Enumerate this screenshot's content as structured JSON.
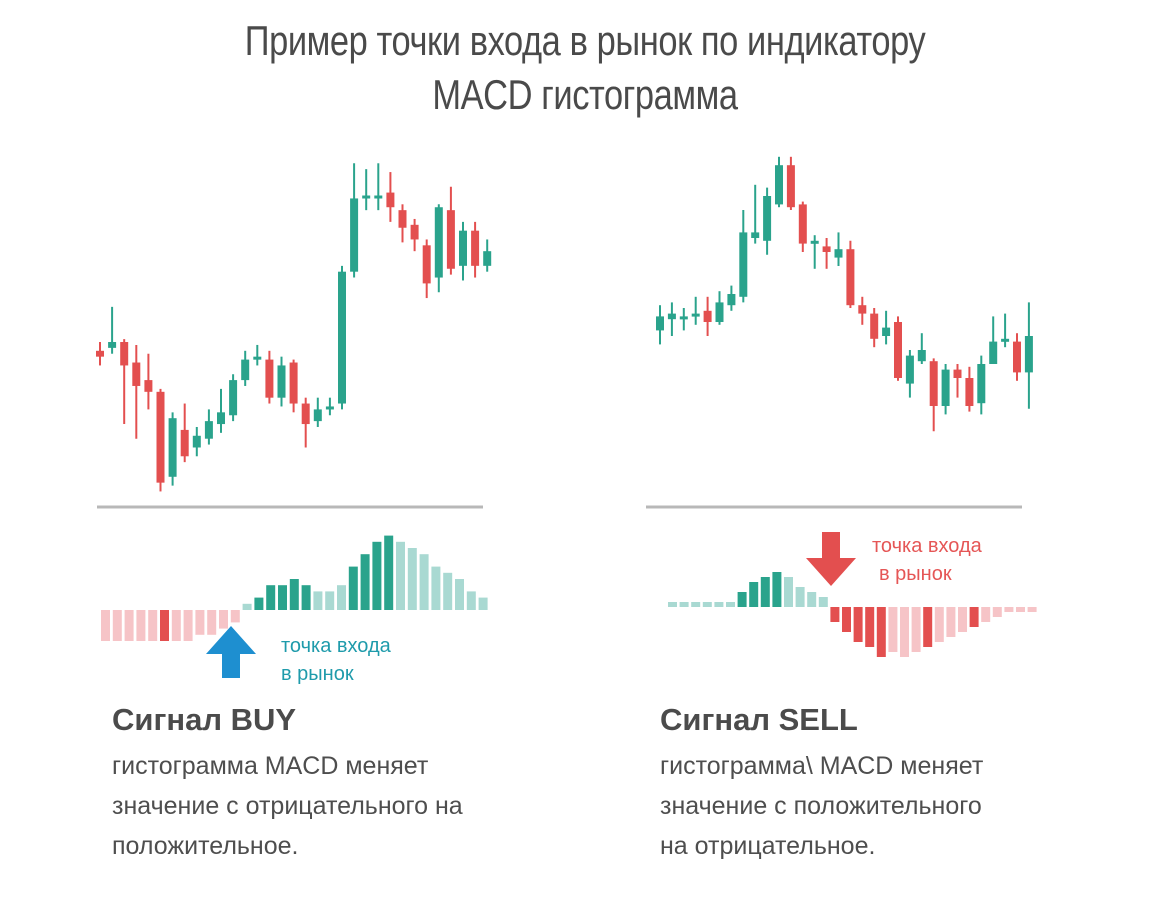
{
  "title": {
    "line1": "Пример точки входа в рынок по индикатору",
    "line2": "MACD гистограмма"
  },
  "colors": {
    "bull": "#2aa38c",
    "bear": "#e34f4f",
    "bull_light": "#a9d9d2",
    "bear_light": "#f6c4c7",
    "arrow_buy": "#1e8fd0",
    "arrow_sell": "#e34f4f",
    "label_buy": "#1f9bab",
    "label_sell": "#e55656",
    "divider": "#b8b8b8"
  },
  "buy": {
    "signal_title": "Сигнал BUY",
    "description": [
      "гистограмма MACD меняет",
      "значение с отрицательного на",
      "положительное."
    ],
    "entry_label": [
      "точка входа",
      "в рынок"
    ],
    "arrow_icon": "arrow-up-icon"
  },
  "sell": {
    "signal_title": "Сигнал SELL",
    "description": [
      "гистограмма\\ MACD меняет",
      "значение с положительного",
      "на отрицательное."
    ],
    "entry_label": [
      "точка входа",
      "в рынок"
    ],
    "arrow_icon": "arrow-down-icon"
  },
  "chart_data": [
    {
      "type": "candlestick",
      "panel": "buy",
      "ylim": [
        0,
        100
      ],
      "candles": [
        {
          "o": 40,
          "c": 38,
          "h": 43,
          "l": 35
        },
        {
          "o": 41,
          "c": 43,
          "h": 55,
          "l": 39
        },
        {
          "o": 43,
          "c": 35,
          "h": 44,
          "l": 15
        },
        {
          "o": 36,
          "c": 28,
          "h": 42,
          "l": 10
        },
        {
          "o": 30,
          "c": 26,
          "h": 39,
          "l": 20
        },
        {
          "o": 26,
          "c": -5,
          "h": 27,
          "l": -8
        },
        {
          "o": -3,
          "c": 17,
          "h": 19,
          "l": -6
        },
        {
          "o": 13,
          "c": 4,
          "h": 22,
          "l": 2
        },
        {
          "o": 7,
          "c": 11,
          "h": 14,
          "l": 4
        },
        {
          "o": 10,
          "c": 16,
          "h": 20,
          "l": 8
        },
        {
          "o": 15,
          "c": 19,
          "h": 27,
          "l": 12
        },
        {
          "o": 18,
          "c": 30,
          "h": 32,
          "l": 16
        },
        {
          "o": 30,
          "c": 37,
          "h": 40,
          "l": 28
        },
        {
          "o": 37,
          "c": 38,
          "h": 42,
          "l": 35
        },
        {
          "o": 37,
          "c": 24,
          "h": 40,
          "l": 22
        },
        {
          "o": 24,
          "c": 35,
          "h": 38,
          "l": 21
        },
        {
          "o": 36,
          "c": 22,
          "h": 37,
          "l": 19
        },
        {
          "o": 22,
          "c": 15,
          "h": 24,
          "l": 7
        },
        {
          "o": 16,
          "c": 20,
          "h": 24,
          "l": 14
        },
        {
          "o": 20,
          "c": 21,
          "h": 24,
          "l": 18
        },
        {
          "o": 22,
          "c": 67,
          "h": 69,
          "l": 20
        },
        {
          "o": 67,
          "c": 92,
          "h": 104,
          "l": 65
        },
        {
          "o": 92,
          "c": 93,
          "h": 102,
          "l": 88
        },
        {
          "o": 92,
          "c": 93,
          "h": 104,
          "l": 88
        },
        {
          "o": 94,
          "c": 89,
          "h": 101,
          "l": 84
        },
        {
          "o": 88,
          "c": 82,
          "h": 90,
          "l": 77
        },
        {
          "o": 83,
          "c": 78,
          "h": 85,
          "l": 74
        },
        {
          "o": 76,
          "c": 63,
          "h": 78,
          "l": 58
        },
        {
          "o": 65,
          "c": 89,
          "h": 90,
          "l": 60
        },
        {
          "o": 88,
          "c": 68,
          "h": 96,
          "l": 66
        },
        {
          "o": 69,
          "c": 81,
          "h": 84,
          "l": 64
        },
        {
          "o": 81,
          "c": 69,
          "h": 84,
          "l": 65
        },
        {
          "o": 69,
          "c": 74,
          "h": 78,
          "l": 67
        }
      ],
      "histogram": [
        -5,
        -5,
        -5,
        -5,
        -5,
        -5,
        -5,
        -5,
        -4,
        -4,
        -3,
        -2,
        1,
        2,
        4,
        4,
        5,
        4,
        3,
        3,
        4,
        7,
        9,
        11,
        12,
        11,
        10,
        9,
        7,
        6,
        5,
        3,
        2
      ],
      "histogram_emphasis": [
        0,
        0,
        0,
        0,
        0,
        1,
        0,
        0,
        0,
        0,
        0,
        0,
        0,
        1,
        1,
        1,
        1,
        1,
        0,
        0,
        0,
        1,
        1,
        1,
        1,
        0,
        0,
        0,
        0,
        0,
        0,
        0,
        0
      ]
    },
    {
      "type": "candlestick",
      "panel": "sell",
      "ylim": [
        0,
        100
      ],
      "candles": [
        {
          "o": 42,
          "c": 47,
          "h": 51,
          "l": 37
        },
        {
          "o": 46,
          "c": 48,
          "h": 52,
          "l": 40
        },
        {
          "o": 47,
          "c": 47,
          "h": 50,
          "l": 42
        },
        {
          "o": 48,
          "c": 48,
          "h": 54,
          "l": 44
        },
        {
          "o": 49,
          "c": 45,
          "h": 54,
          "l": 40
        },
        {
          "o": 45,
          "c": 52,
          "h": 56,
          "l": 44
        },
        {
          "o": 51,
          "c": 55,
          "h": 58,
          "l": 49
        },
        {
          "o": 54,
          "c": 77,
          "h": 85,
          "l": 52
        },
        {
          "o": 75,
          "c": 77,
          "h": 94,
          "l": 73
        },
        {
          "o": 74,
          "c": 90,
          "h": 93,
          "l": 69
        },
        {
          "o": 87,
          "c": 101,
          "h": 104,
          "l": 86
        },
        {
          "o": 101,
          "c": 86,
          "h": 104,
          "l": 85
        },
        {
          "o": 87,
          "c": 73,
          "h": 88,
          "l": 70
        },
        {
          "o": 73,
          "c": 74,
          "h": 76,
          "l": 64
        },
        {
          "o": 72,
          "c": 70,
          "h": 75,
          "l": 64
        },
        {
          "o": 68,
          "c": 71,
          "h": 77,
          "l": 65
        },
        {
          "o": 71,
          "c": 51,
          "h": 74,
          "l": 50
        },
        {
          "o": 51,
          "c": 48,
          "h": 54,
          "l": 44
        },
        {
          "o": 48,
          "c": 39,
          "h": 50,
          "l": 36
        },
        {
          "o": 40,
          "c": 43,
          "h": 49,
          "l": 37
        },
        {
          "o": 45,
          "c": 25,
          "h": 47,
          "l": 24
        },
        {
          "o": 23,
          "c": 33,
          "h": 35,
          "l": 18
        },
        {
          "o": 31,
          "c": 35,
          "h": 41,
          "l": 30
        },
        {
          "o": 31,
          "c": 15,
          "h": 32,
          "l": 6
        },
        {
          "o": 15,
          "c": 28,
          "h": 30,
          "l": 12
        },
        {
          "o": 28,
          "c": 25,
          "h": 30,
          "l": 18
        },
        {
          "o": 25,
          "c": 15,
          "h": 29,
          "l": 13
        },
        {
          "o": 16,
          "c": 30,
          "h": 33,
          "l": 12
        },
        {
          "o": 30,
          "c": 38,
          "h": 47,
          "l": 30
        },
        {
          "o": 38,
          "c": 39,
          "h": 48,
          "l": 36
        },
        {
          "o": 38,
          "c": 27,
          "h": 41,
          "l": 24
        },
        {
          "o": 27,
          "c": 40,
          "h": 52,
          "l": 14
        }
      ],
      "histogram": [
        1,
        1,
        1,
        1,
        1,
        1,
        3,
        5,
        6,
        7,
        6,
        4,
        3,
        2,
        -3,
        -5,
        -7,
        -8,
        -10,
        -9,
        -10,
        -9,
        -8,
        -7,
        -6,
        -5,
        -4,
        -3,
        -2,
        -1,
        -1,
        -1
      ],
      "histogram_emphasis": [
        0,
        0,
        0,
        0,
        0,
        0,
        1,
        1,
        1,
        1,
        0,
        0,
        0,
        0,
        1,
        1,
        1,
        1,
        1,
        0,
        0,
        0,
        1,
        0,
        0,
        0,
        1,
        0,
        0,
        0,
        0,
        0
      ]
    }
  ]
}
